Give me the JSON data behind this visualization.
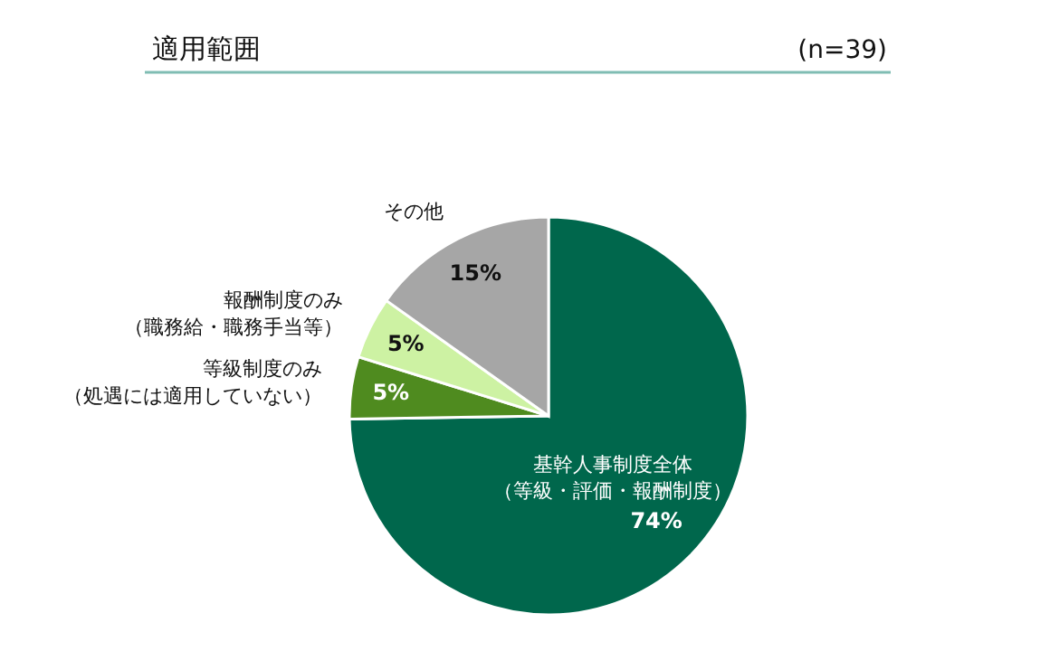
{
  "chart_data": {
    "type": "pie",
    "title": "適用範囲",
    "annotations": [
      "(n=39)"
    ],
    "categories": [
      "基幹人事制度全体（等級・評価・報酬制度）",
      "等級制度のみ（処遇には適用していない）",
      "報酬制度のみ（職務給・職務手当等）",
      "その他"
    ],
    "values": [
      74,
      5,
      5,
      15
    ],
    "colors": [
      "#00674c",
      "#4f8b1f",
      "#cdf2a3",
      "#a6a6a6"
    ],
    "value_labels": [
      "74%",
      "5%",
      "5%",
      "15%"
    ]
  }
}
